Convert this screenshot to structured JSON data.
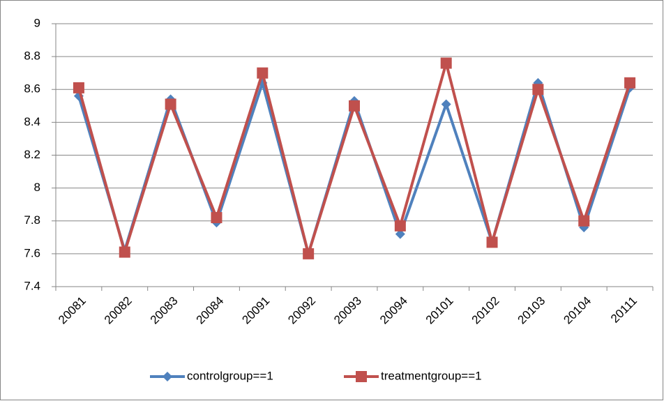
{
  "chart_data": {
    "type": "line",
    "categories": [
      "20081",
      "20082",
      "20083",
      "20084",
      "20091",
      "20092",
      "20093",
      "20094",
      "20101",
      "20102",
      "20103",
      "20104",
      "20111"
    ],
    "series": [
      {
        "name": "controlgroup==1",
        "color": "#4f81bd",
        "marker": "diamond",
        "values": [
          8.56,
          7.62,
          8.54,
          7.79,
          8.64,
          7.6,
          8.53,
          7.72,
          8.51,
          7.67,
          8.64,
          7.76,
          8.61
        ]
      },
      {
        "name": "treatmentgroup==1",
        "color": "#c0504d",
        "marker": "square",
        "values": [
          8.61,
          7.61,
          8.51,
          7.82,
          8.7,
          7.6,
          8.5,
          7.77,
          8.76,
          7.67,
          8.6,
          7.8,
          8.64
        ]
      }
    ],
    "ylim": [
      7.4,
      9
    ],
    "yticks": [
      7.4,
      7.6,
      7.8,
      8,
      8.2,
      8.4,
      8.6,
      8.8,
      9
    ],
    "grid": true,
    "legend": "bottom"
  }
}
